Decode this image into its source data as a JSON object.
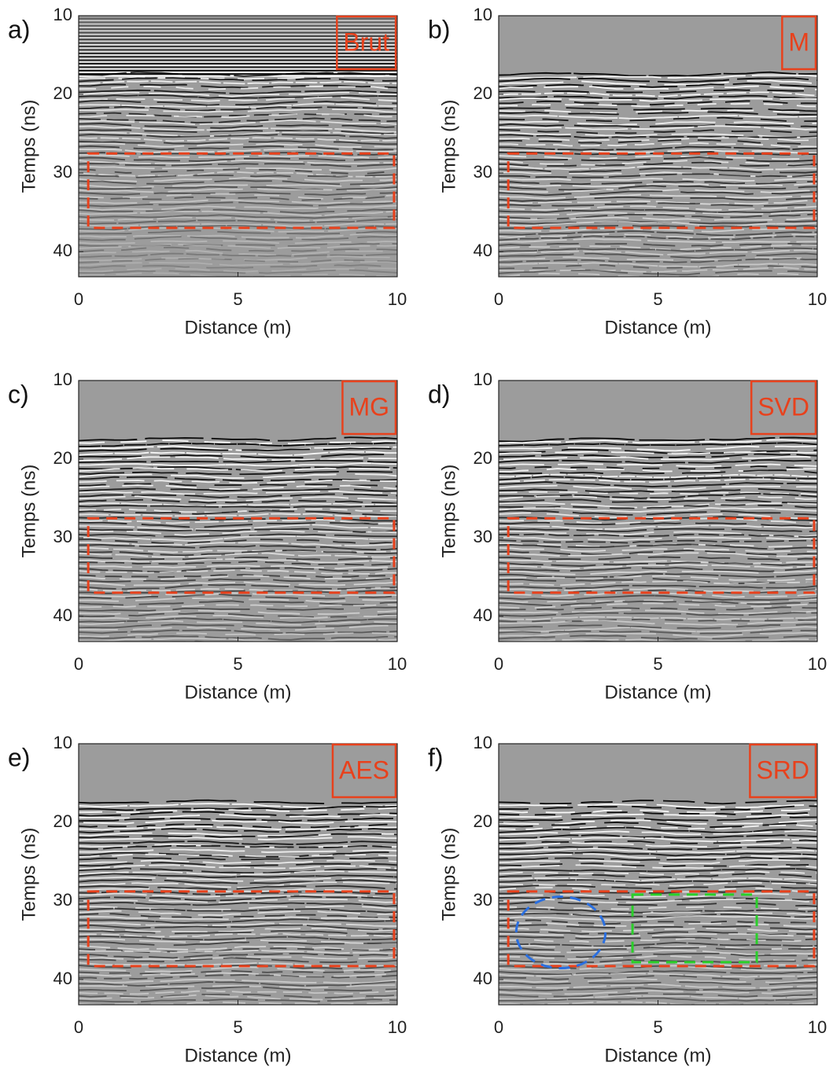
{
  "chart_data": [
    {
      "type": "radargram",
      "panel_label": "a)",
      "title": "Brut",
      "xlabel": "Distance (m)",
      "ylabel": "Temps (ns)",
      "xlim": [
        0,
        10
      ],
      "ylim": [
        10,
        43.2
      ],
      "y_inverted": true,
      "xticks": [
        0,
        5,
        10
      ],
      "yticks": [
        10,
        20,
        30,
        40
      ]
    },
    {
      "type": "radargram",
      "panel_label": "b)",
      "title": "M",
      "xlabel": "Distance (m)",
      "ylabel": "Temps (ns)",
      "xlim": [
        0,
        10
      ],
      "ylim": [
        10,
        43.2
      ],
      "y_inverted": true,
      "xticks": [
        0,
        5,
        10
      ],
      "yticks": [
        10,
        20,
        30,
        40
      ]
    },
    {
      "type": "radargram",
      "panel_label": "c)",
      "title": "MG",
      "xlabel": "Distance (m)",
      "ylabel": "Temps (ns)",
      "xlim": [
        0,
        10
      ],
      "ylim": [
        10,
        43.2
      ],
      "y_inverted": true,
      "xticks": [
        0,
        5,
        10
      ],
      "yticks": [
        10,
        20,
        30,
        40
      ]
    },
    {
      "type": "radargram",
      "panel_label": "d)",
      "title": "SVD",
      "xlabel": "Distance (m)",
      "ylabel": "Temps (ns)",
      "xlim": [
        0,
        10
      ],
      "ylim": [
        10,
        43.2
      ],
      "y_inverted": true,
      "xticks": [
        0,
        5,
        10
      ],
      "yticks": [
        10,
        20,
        30,
        40
      ]
    },
    {
      "type": "radargram",
      "panel_label": "e)",
      "title": "AES",
      "xlabel": "Distance (m)",
      "ylabel": "Temps (ns)",
      "xlim": [
        0,
        10
      ],
      "ylim": [
        10,
        43.2
      ],
      "y_inverted": true,
      "xticks": [
        0,
        5,
        10
      ],
      "yticks": [
        10,
        20,
        30,
        40
      ]
    },
    {
      "type": "radargram",
      "panel_label": "f)",
      "title": "SRD",
      "xlabel": "Distance (m)",
      "ylabel": "Temps (ns)",
      "xlim": [
        0,
        10
      ],
      "ylim": [
        10,
        43.2
      ],
      "y_inverted": true,
      "xticks": [
        0,
        5,
        10
      ],
      "yticks": [
        10,
        20,
        30,
        40
      ]
    }
  ]
}
